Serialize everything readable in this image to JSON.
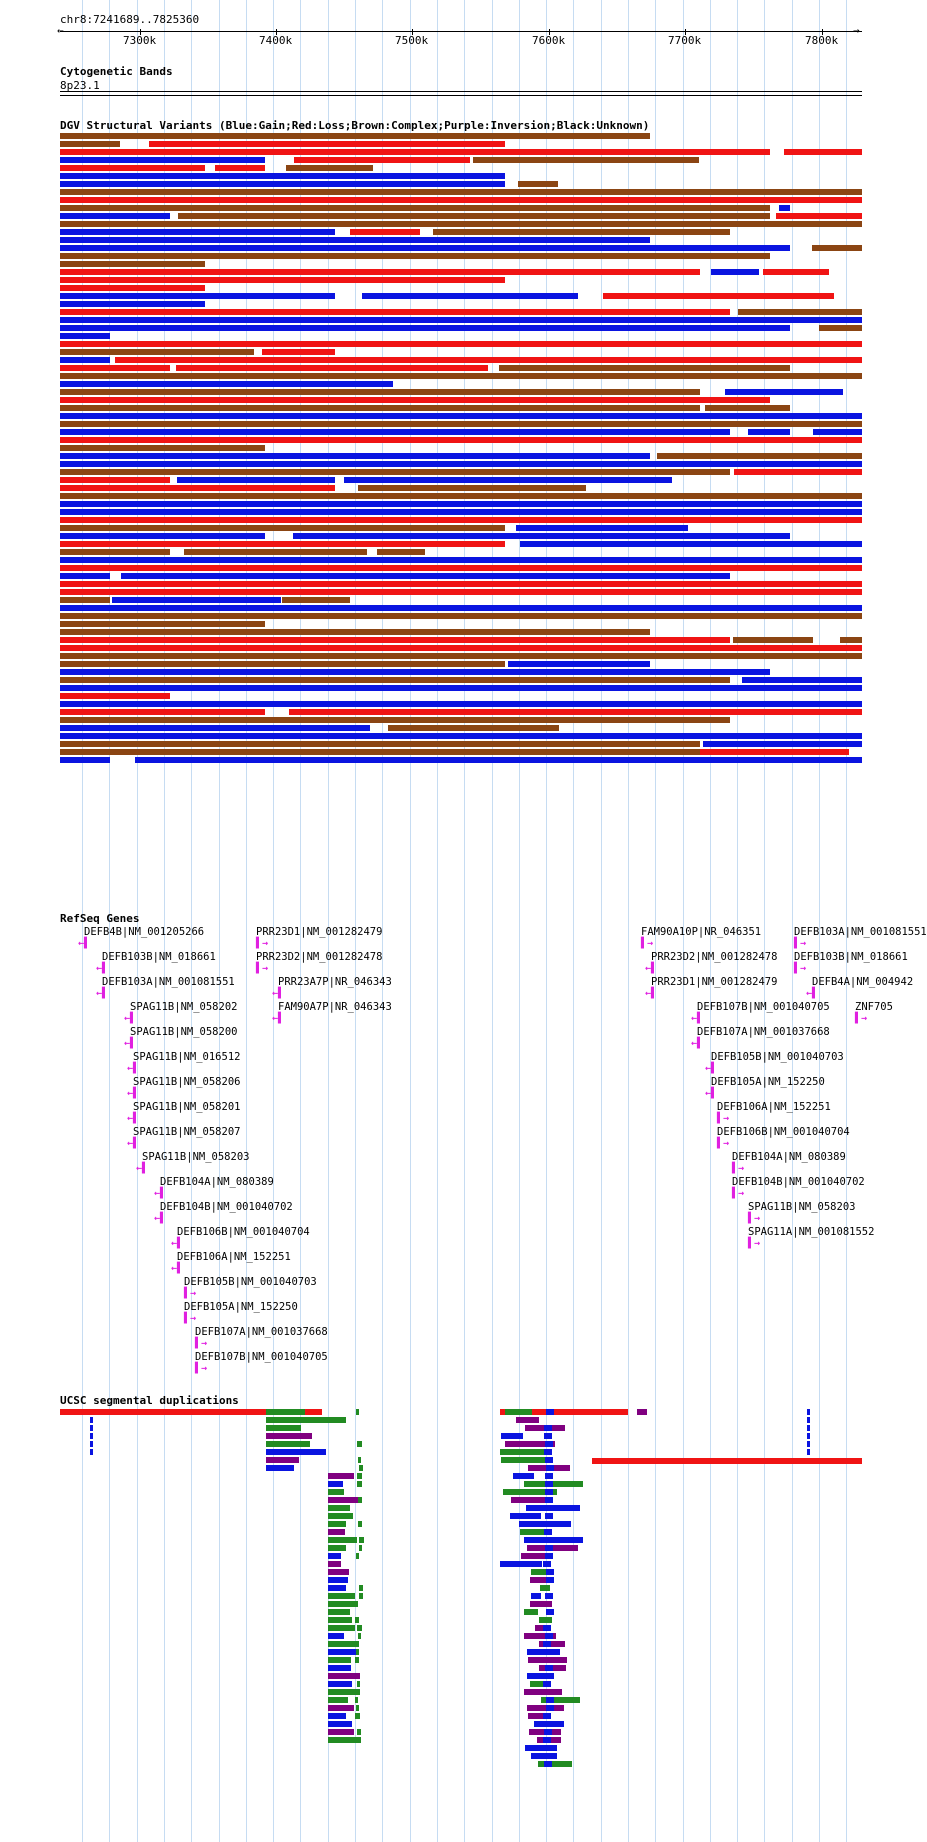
{
  "ruler": {
    "position_label": "chr8:7241689..7825360",
    "ticks": [
      "7300k",
      "7400k",
      "7500k",
      "7600k",
      "7700k",
      "7800k"
    ]
  },
  "cytoband": {
    "title": "Cytogenetic Bands",
    "band": "8p23.1"
  },
  "dgv": {
    "title": "DGV Structural Variants (Blue:Gain;Red:Loss;Brown:Complex;Purple:Inversion;Black:Unknown)",
    "colors": {
      "gain": "#0a14e0",
      "loss": "#f01414",
      "complex": "#8b4513",
      "inversion": "#800080",
      "unknown": "#000000"
    }
  },
  "refseq": {
    "title": "RefSeq Genes",
    "genes": [
      {
        "label": "DEFB4B|NM_001205266",
        "dir": "minus"
      },
      {
        "label": "DEFB103B|NM_018661",
        "dir": "minus"
      },
      {
        "label": "DEFB103A|NM_001081551",
        "dir": "minus"
      },
      {
        "label": "SPAG11B|NM_058202",
        "dir": "minus"
      },
      {
        "label": "SPAG11B|NM_058200",
        "dir": "minus"
      },
      {
        "label": "SPAG11B|NM_016512",
        "dir": "minus"
      },
      {
        "label": "SPAG11B|NM_058206",
        "dir": "minus"
      },
      {
        "label": "SPAG11B|NM_058201",
        "dir": "minus"
      },
      {
        "label": "SPAG11B|NM_058207",
        "dir": "minus"
      },
      {
        "label": "SPAG11B|NM_058203",
        "dir": "minus"
      },
      {
        "label": "DEFB104A|NM_080389",
        "dir": "minus"
      },
      {
        "label": "DEFB104B|NM_001040702",
        "dir": "minus"
      },
      {
        "label": "DEFB106B|NM_001040704",
        "dir": "minus"
      },
      {
        "label": "DEFB106A|NM_152251",
        "dir": "minus"
      },
      {
        "label": "DEFB105B|NM_001040703",
        "dir": "plus"
      },
      {
        "label": "DEFB105A|NM_152250",
        "dir": "plus"
      },
      {
        "label": "DEFB107A|NM_001037668",
        "dir": "plus"
      },
      {
        "label": "DEFB107B|NM_001040705",
        "dir": "plus"
      },
      {
        "label": "PRR23D1|NM_001282479",
        "dir": "plus"
      },
      {
        "label": "PRR23D2|NM_001282478",
        "dir": "plus"
      },
      {
        "label": "PRR23A7P|NR_046343",
        "dir": "minus"
      },
      {
        "label": "FAM90A7P|NR_046343",
        "dir": "minus"
      },
      {
        "label": "FAM90A10P|NR_046351",
        "dir": "plus"
      },
      {
        "label": "PRR23D2|NM_001282478",
        "dir": "minus"
      },
      {
        "label": "PRR23D1|NM_001282479",
        "dir": "minus"
      },
      {
        "label": "DEFB107B|NM_001040705",
        "dir": "minus"
      },
      {
        "label": "DEFB107A|NM_001037668",
        "dir": "minus"
      },
      {
        "label": "DEFB105B|NM_001040703",
        "dir": "minus"
      },
      {
        "label": "DEFB105A|NM_152250",
        "dir": "minus"
      },
      {
        "label": "DEFB106A|NM_152251",
        "dir": "plus"
      },
      {
        "label": "DEFB106B|NM_001040704",
        "dir": "plus"
      },
      {
        "label": "DEFB104A|NM_080389",
        "dir": "plus"
      },
      {
        "label": "DEFB104B|NM_001040702",
        "dir": "plus"
      },
      {
        "label": "SPAG11B|NM_058203",
        "dir": "plus"
      },
      {
        "label": "SPAG11A|NM_001081552",
        "dir": "plus"
      },
      {
        "label": "DEFB103A|NM_001081551",
        "dir": "plus"
      },
      {
        "label": "DEFB103B|NM_018661",
        "dir": "plus"
      },
      {
        "label": "DEFB4A|NM_004942",
        "dir": "minus"
      },
      {
        "label": "ZNF705",
        "dir": "plus"
      }
    ]
  },
  "segdup": {
    "title": "UCSC segmental duplications",
    "colors": {
      "red": "#f01414",
      "green": "#228b22",
      "blue": "#0a14e0",
      "purple": "#800080"
    }
  }
}
